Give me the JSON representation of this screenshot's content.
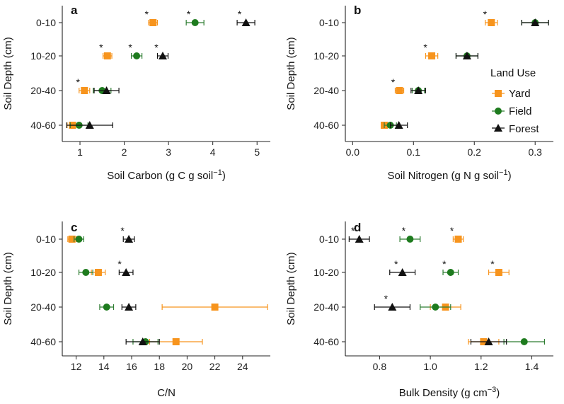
{
  "chart_data": [
    {
      "panel": "a",
      "type": "scatter",
      "xlabel": "Soil Carbon (g C g soil",
      "xlabel_sup": "−1",
      "xlabel_end": ")",
      "ylabel": "Soil Depth (cm)",
      "xlim": [
        0.6,
        5.3
      ],
      "xticks": [
        1,
        2,
        3,
        4,
        5
      ],
      "xtick_labels": [
        "1",
        "2",
        "3",
        "4",
        "5"
      ],
      "categories": [
        "0-10",
        "10-20",
        "20-40",
        "40-60"
      ],
      "series": [
        {
          "name": "Yard",
          "values": [
            2.65,
            1.62,
            1.1,
            0.83
          ],
          "errors": [
            0.1,
            0.1,
            0.12,
            0.12
          ],
          "significant": [
            true,
            true,
            true,
            false
          ]
        },
        {
          "name": "Field",
          "values": [
            3.6,
            2.28,
            1.5,
            0.98
          ],
          "errors": [
            0.2,
            0.12,
            0.2,
            0.2
          ],
          "significant": [
            true,
            true,
            false,
            false
          ]
        },
        {
          "name": "Forest",
          "values": [
            4.75,
            2.87,
            1.6,
            1.22
          ],
          "errors": [
            0.2,
            0.12,
            0.28,
            0.52
          ],
          "significant": [
            true,
            true,
            false,
            false
          ]
        }
      ]
    },
    {
      "panel": "b",
      "type": "scatter",
      "xlabel": "Soil Nitrogen (g N g soil",
      "xlabel_sup": "−1",
      "xlabel_end": ")",
      "ylabel": "Soil Depth (cm)",
      "xlim": [
        -0.012,
        0.33
      ],
      "xticks": [
        0.0,
        0.1,
        0.2,
        0.3
      ],
      "xtick_labels": [
        "0.0",
        "0.1",
        "0.2",
        "0.3"
      ],
      "categories": [
        "0-10",
        "10-20",
        "20-40",
        "40-60"
      ],
      "series": [
        {
          "name": "Yard",
          "values": [
            0.228,
            0.13,
            0.077,
            0.052
          ],
          "errors": [
            0.01,
            0.01,
            0.007,
            0.005
          ],
          "significant": [
            true,
            true,
            true,
            false
          ]
        },
        {
          "name": "Field",
          "values": [
            0.3,
            0.188,
            0.108,
            0.062
          ],
          "errors": [
            0.022,
            0.018,
            0.01,
            0.01
          ],
          "significant": [
            false,
            false,
            false,
            false
          ]
        },
        {
          "name": "Forest",
          "values": [
            0.3,
            0.188,
            0.108,
            0.076
          ],
          "errors": [
            0.022,
            0.018,
            0.012,
            0.014
          ],
          "significant": [
            false,
            false,
            false,
            false
          ]
        }
      ]
    },
    {
      "panel": "c",
      "type": "scatter",
      "xlabel": "C/N",
      "xlabel_sup": "",
      "xlabel_end": "",
      "ylabel": "Soil Depth (cm)",
      "xlim": [
        11.0,
        26.0
      ],
      "xticks": [
        12,
        14,
        16,
        18,
        20,
        22,
        24
      ],
      "xtick_labels": [
        "12",
        "14",
        "16",
        "18",
        "20",
        "22",
        "24"
      ],
      "categories": [
        "0-10",
        "10-20",
        "20-40",
        "40-60"
      ],
      "series": [
        {
          "name": "Yard",
          "values": [
            11.7,
            13.6,
            22.0,
            19.2
          ],
          "errors": [
            0.3,
            0.5,
            3.8,
            1.9
          ],
          "significant": [
            false,
            false,
            false,
            false
          ]
        },
        {
          "name": "Field",
          "values": [
            12.2,
            12.7,
            14.2,
            17.0
          ],
          "errors": [
            0.35,
            0.5,
            0.5,
            0.9
          ],
          "significant": [
            false,
            false,
            false,
            false
          ]
        },
        {
          "name": "Forest",
          "values": [
            15.8,
            15.6,
            15.8,
            16.8
          ],
          "errors": [
            0.4,
            0.5,
            0.5,
            1.2
          ],
          "significant": [
            true,
            true,
            false,
            false
          ]
        }
      ]
    },
    {
      "panel": "d",
      "type": "scatter",
      "xlabel": "Bulk Density (g cm",
      "xlabel_sup": "−3",
      "xlabel_end": ")",
      "ylabel": "Soil Depth (cm)",
      "xlim": [
        0.665,
        1.485
      ],
      "xticks": [
        0.8,
        1.0,
        1.2,
        1.4
      ],
      "xtick_labels": [
        "0.8",
        "1.0",
        "1.2",
        "1.4"
      ],
      "categories": [
        "0-10",
        "10-20",
        "20-40",
        "40-60"
      ],
      "series": [
        {
          "name": "Yard",
          "values": [
            1.11,
            1.27,
            1.06,
            1.21
          ],
          "errors": [
            0.02,
            0.04,
            0.06,
            0.06
          ],
          "significant": [
            true,
            true,
            false,
            false
          ]
        },
        {
          "name": "Field",
          "values": [
            0.92,
            1.08,
            1.02,
            1.37
          ],
          "errors": [
            0.04,
            0.03,
            0.06,
            0.08
          ],
          "significant": [
            true,
            true,
            false,
            false
          ]
        },
        {
          "name": "Forest",
          "values": [
            0.72,
            0.89,
            0.85,
            1.23
          ],
          "errors": [
            0.04,
            0.05,
            0.07,
            0.07
          ],
          "significant": [
            true,
            true,
            true,
            false
          ]
        }
      ]
    }
  ],
  "legend": {
    "title": "Land Use",
    "items": [
      {
        "label": "Yard",
        "color": "#F7941D",
        "shape": "square"
      },
      {
        "label": "Field",
        "color": "#1E7B1E",
        "shape": "circle"
      },
      {
        "label": "Forest",
        "color": "#111111",
        "shape": "triangle"
      }
    ]
  },
  "colors": {
    "Yard": "#F7941D",
    "Field": "#1E7B1E",
    "Forest": "#111111",
    "Yard_err": "#F7941D",
    "Field_err": "#2E7D32",
    "Forest_err": "#111111"
  },
  "significance_marker": "*"
}
